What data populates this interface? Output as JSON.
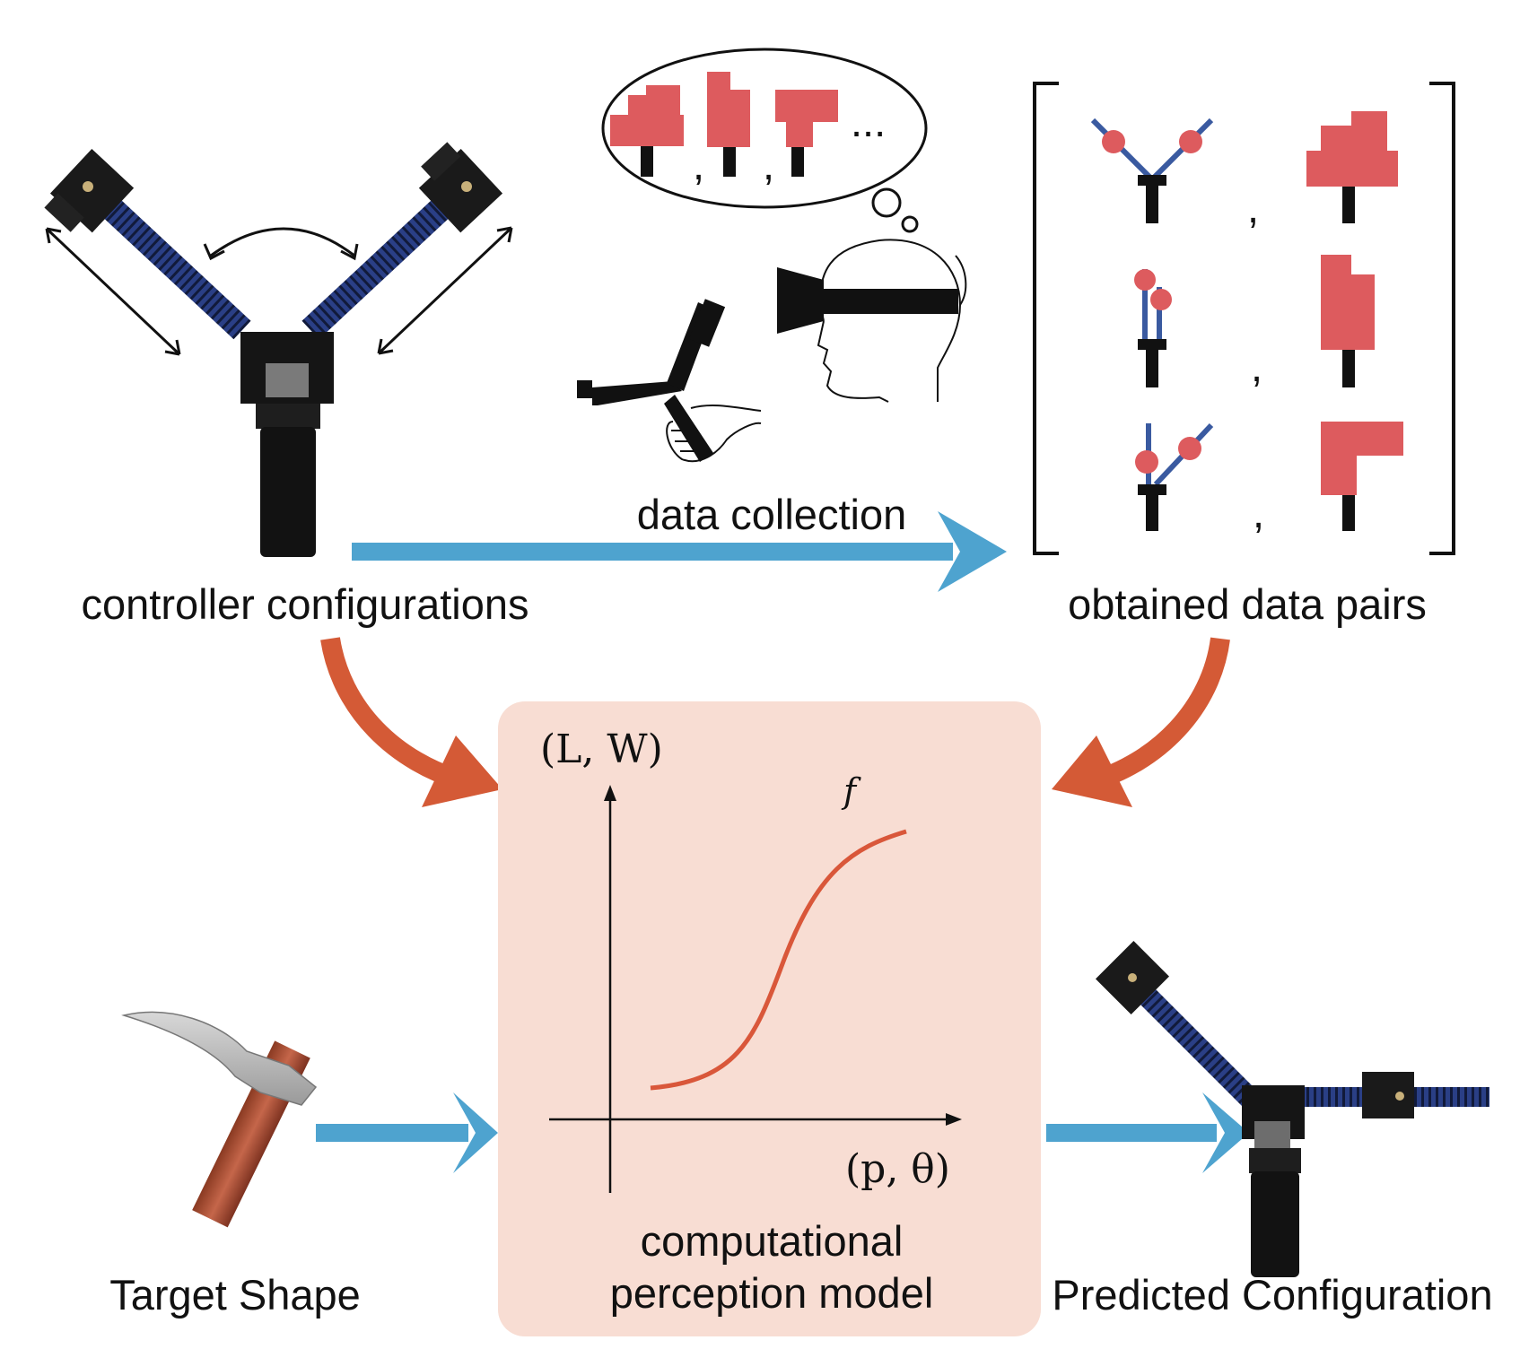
{
  "labels": {
    "controller_configurations": "controller configurations",
    "data_collection": "data collection",
    "obtained_data_pairs": "obtained data pairs",
    "target_shape": "Target Shape",
    "model_line1": "computational",
    "model_line2": "perception model",
    "predicted_configuration": "Predicted Configuration"
  },
  "plot": {
    "y_axis_label": "(L, W)",
    "x_axis_label": "(p, θ)",
    "function_label": "f"
  },
  "thought_ellipsis": "...",
  "pair_separator": ",",
  "colors": {
    "blue_arrow": "#4ea3cf",
    "orange_arrow": "#d45a36",
    "panel_fill": "#f8ddd3",
    "curve": "#d9573a",
    "shape_red": "#dd5b5e",
    "rod_blue": "#3a5aa0"
  }
}
